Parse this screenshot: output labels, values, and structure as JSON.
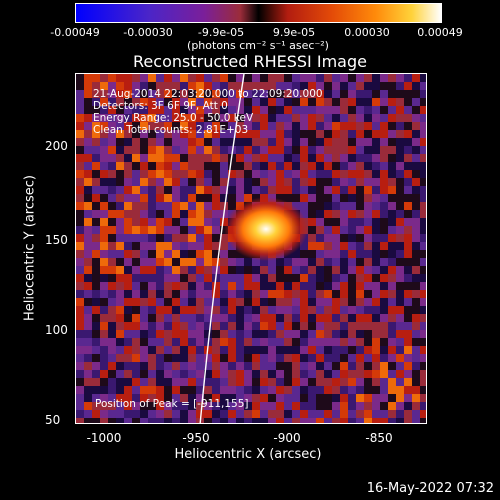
{
  "colorbar": {
    "ticks": [
      "-0.00049",
      "-0.00030",
      "-9.9e-05",
      "9.9e-05",
      "0.00030",
      "0.00049"
    ],
    "units": "(photons cm⁻² s⁻¹ asec⁻²)"
  },
  "title": "Reconstructed RHESSI Image",
  "info": {
    "time": "21-Aug-2014 22:03:20.000 to 22:09:20.000",
    "detectors": "Detectors: 3F 6F 9F, Att 0",
    "energy": "Energy Range: 25.0 - 50.0 keV",
    "clean": "Clean     Total counts: 2.81E+03",
    "peak": "Position of Peak = [-911,155]"
  },
  "axes": {
    "xlabel": "Heliocentric X (arcsec)",
    "ylabel": "Heliocentric Y (arcsec)",
    "xticks": [
      "-1000",
      "-950",
      "-900",
      "-850"
    ],
    "yticks": [
      "200",
      "150",
      "100",
      "50"
    ]
  },
  "timestamp": "16-May-2022 07:32"
}
